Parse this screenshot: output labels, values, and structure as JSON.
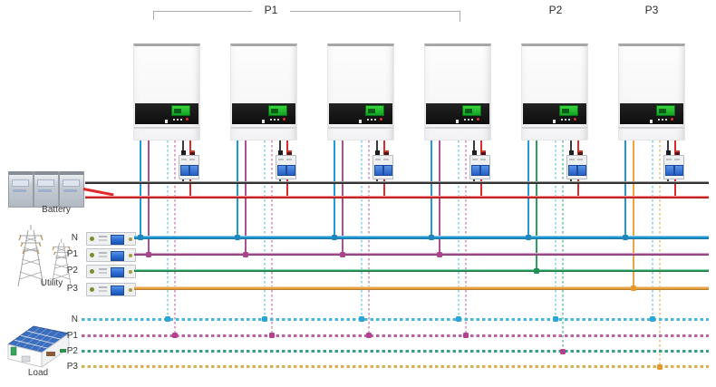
{
  "groups": {
    "p1": {
      "label": "P1"
    },
    "p2": {
      "label": "P2"
    },
    "p3": {
      "label": "P3"
    }
  },
  "inverters": [
    {
      "phase": "P1"
    },
    {
      "phase": "P1"
    },
    {
      "phase": "P1"
    },
    {
      "phase": "P1"
    },
    {
      "phase": "P2"
    },
    {
      "phase": "P3"
    }
  ],
  "battery": {
    "label": "Battery",
    "positive_color": "#de2a2a",
    "negative_color": "#3c3c3c"
  },
  "utility": {
    "label": "Utility",
    "lines": [
      {
        "label": "N",
        "phase": "N"
      },
      {
        "label": "P1",
        "phase": "P1"
      },
      {
        "label": "P2",
        "phase": "P2"
      },
      {
        "label": "P3",
        "phase": "P3"
      }
    ]
  },
  "load": {
    "label": "Load",
    "lines": [
      {
        "label": "N",
        "phase": "N"
      },
      {
        "label": "P1",
        "phase": "P1"
      },
      {
        "label": "P2",
        "phase": "P2"
      },
      {
        "label": "P3",
        "phase": "P3"
      }
    ]
  },
  "phases": {
    "N": {
      "solid": "#2299d4",
      "dotted": "#49b4dc",
      "dotted_vertical": "#9fdaee",
      "dot": "#1f86bd",
      "dotted_dot": "#2aa6d6"
    },
    "P1": {
      "solid": "#ad4f94",
      "dotted": "#bd62a6",
      "dotted_vertical": "#d9a8cb",
      "dot": "#a8438c",
      "dotted_dot": "#b3418f"
    },
    "P2": {
      "solid": "#2aa05e",
      "dotted": "#3a9e85",
      "dotted_vertical": "#8fcdbf",
      "dot": "#1e8f52",
      "dotted_dot": "#b3418f"
    },
    "P3": {
      "solid": "#eba443",
      "dotted": "#d8b055",
      "dotted_vertical": "#ecd29a",
      "dot": "#e8982a",
      "dotted_dot": "#e8982a"
    }
  }
}
